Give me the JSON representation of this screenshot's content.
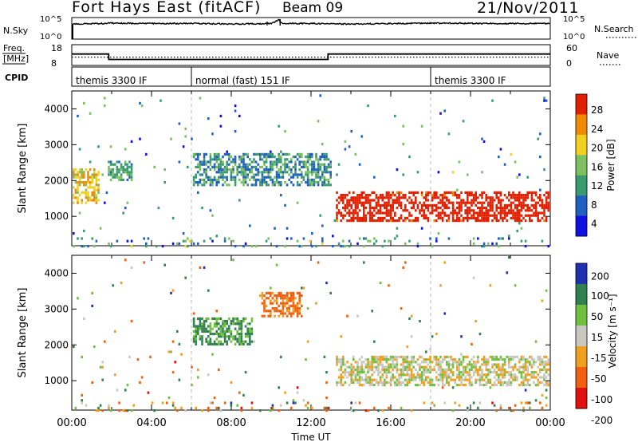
{
  "header": {
    "site_label": "Fort Hays East (fitACF)",
    "beam_label": "Beam 09",
    "date_label": "21/Nov/2011"
  },
  "chart_data": [
    {
      "type": "line",
      "title": "",
      "left_label": "N.Sky",
      "right_label": "N.Search",
      "left_ticks": [
        "10^5",
        "10^0"
      ],
      "right_ticks": [
        "10^5",
        "10^0"
      ],
      "xlim": [
        "00:00",
        "24:00"
      ],
      "description_series": [
        {
          "name": "N.Sky",
          "x_hours": [
            0.0,
            0.05,
            1.0,
            2.0,
            3.0,
            4.0,
            6.0,
            8.0,
            10.0,
            10.4,
            10.5,
            12.0,
            14.0,
            16.0,
            18.0,
            20.0,
            22.0,
            24.0
          ],
          "level": [
            0.1,
            0.7,
            0.72,
            0.74,
            0.73,
            0.72,
            0.73,
            0.7,
            0.72,
            0.9,
            0.74,
            0.72,
            0.7,
            0.72,
            0.74,
            0.73,
            0.72,
            0.72
          ]
        }
      ]
    },
    {
      "type": "line",
      "left_label": "Freq. [MHz]",
      "left_ticks": [
        "18",
        "8"
      ],
      "right_label": "Nave",
      "right_ticks": [
        "60",
        "0"
      ],
      "series": [
        {
          "name": "Freq.",
          "style": "solid",
          "x_hours": [
            0.0,
            1.85,
            1.85,
            12.85,
            12.85,
            24.0
          ],
          "mhz": [
            13.5,
            13.5,
            10.9,
            10.9,
            13.5,
            13.5
          ]
        },
        {
          "name": "Nave",
          "style": "dotted",
          "x_hours": [
            0.0,
            24.0
          ],
          "value": [
            24,
            24
          ]
        }
      ]
    },
    {
      "type": "table",
      "left_label": "CPID",
      "segments": [
        {
          "label": "themis 3300 IF",
          "start_hours": 0.0
        },
        {
          "label": "normal (fast) 151 IF",
          "start_hours": 6.0
        },
        {
          "label": "themis 3300 IF",
          "start_hours": 18.0
        }
      ]
    },
    {
      "type": "heatmap",
      "ylabel": "Slant Range [km]",
      "xlabel": "",
      "ylim": [
        180,
        4500
      ],
      "yticks": [
        1000,
        2000,
        3000,
        4000
      ],
      "colorbar_label": "Power [dB]",
      "colorbar_ticks": [
        "28",
        "24",
        "20",
        "16",
        "12",
        "8",
        "4"
      ],
      "colorbar_range": [
        0,
        30
      ],
      "colors": [
        "#1010e0",
        "#2060c0",
        "#3a9a70",
        "#7cc060",
        "#f0d020",
        "#f08a00",
        "#e02000"
      ],
      "features": [
        {
          "feature": "morning band",
          "hours": [
            0.0,
            1.3
          ],
          "range_km": [
            1400,
            2400
          ],
          "power_db": 20
        },
        {
          "feature": "arc",
          "hours": [
            1.8,
            3.0
          ],
          "range_km": [
            2000,
            2600
          ],
          "power_db": 12
        },
        {
          "feature": "evening echoes",
          "hours": [
            6.0,
            13.0
          ],
          "range_km": [
            1900,
            2800
          ],
          "power_db": 10
        },
        {
          "feature": "main band",
          "hours": [
            13.2,
            24.0
          ],
          "range_km": [
            900,
            1700
          ],
          "power_db": 26
        }
      ]
    },
    {
      "type": "heatmap",
      "ylabel": "Slant Range [km]",
      "xlabel": "Time UT",
      "ylim": [
        180,
        4500
      ],
      "yticks": [
        1000,
        2000,
        3000,
        4000
      ],
      "xticks": [
        "00:00",
        "04:00",
        "08:00",
        "12:00",
        "16:00",
        "20:00",
        "00:00"
      ],
      "colorbar_label": "Velocity [m s⁻¹]",
      "colorbar_ticks": [
        "200",
        "100",
        "50",
        "15",
        "-15",
        "-50",
        "-100",
        "-200"
      ],
      "colors": [
        "#2030b0",
        "#308050",
        "#70c040",
        "#c8c8c0",
        "#f0a020",
        "#f06010",
        "#e01010"
      ],
      "features": [
        {
          "feature": "ground scatter",
          "hours": [
            13.2,
            24.0
          ],
          "range_km": [
            900,
            1700
          ],
          "velocity": 0
        },
        {
          "feature": "westward band",
          "hours": [
            6.0,
            9.0
          ],
          "range_km": [
            2000,
            2800
          ],
          "velocity": 60
        },
        {
          "feature": "eastward cells",
          "hours": [
            9.5,
            11.5
          ],
          "range_km": [
            2800,
            3500
          ],
          "velocity": -60
        }
      ]
    }
  ]
}
